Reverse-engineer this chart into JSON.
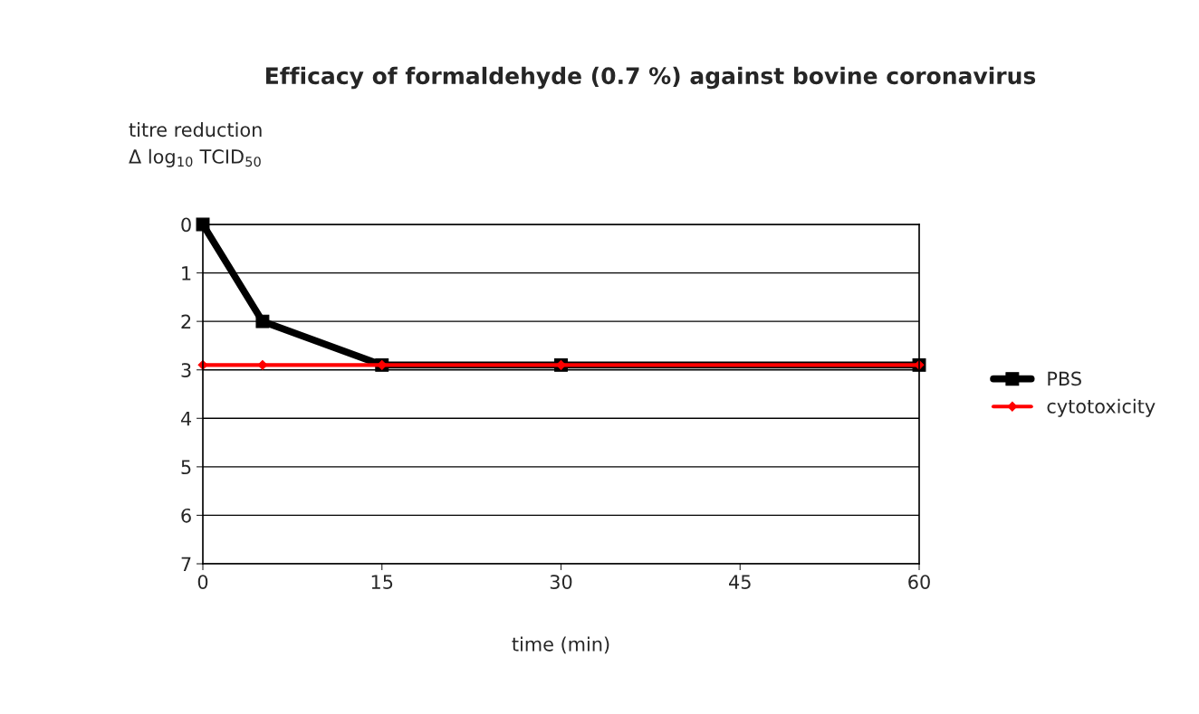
{
  "chart_data": {
    "type": "line",
    "title": "Efficacy of formaldehyde (0.7 %) against bovine coronavirus",
    "xlabel": "time (min)",
    "ylabel": "titre reduction\nΔ log$_{10}$ TCID$_{50}$",
    "x": [
      0,
      5,
      15,
      30,
      60
    ],
    "series": [
      {
        "name": "PBS",
        "color": "#000000",
        "marker": "square",
        "values": [
          0,
          2,
          2.9,
          2.9,
          2.9
        ]
      },
      {
        "name": "cytotoxicity",
        "color": "#ff0000",
        "marker": "diamond",
        "values": [
          2.9,
          2.9,
          2.9,
          2.9,
          2.9
        ]
      }
    ],
    "xlim": [
      0,
      60
    ],
    "xticks": [
      0,
      15,
      30,
      45,
      60
    ],
    "ylim": [
      7,
      0
    ],
    "yticks": [
      0,
      1,
      2,
      3,
      4,
      5,
      6,
      7
    ],
    "grid": "y",
    "legend": "right",
    "line_style": "solid"
  }
}
